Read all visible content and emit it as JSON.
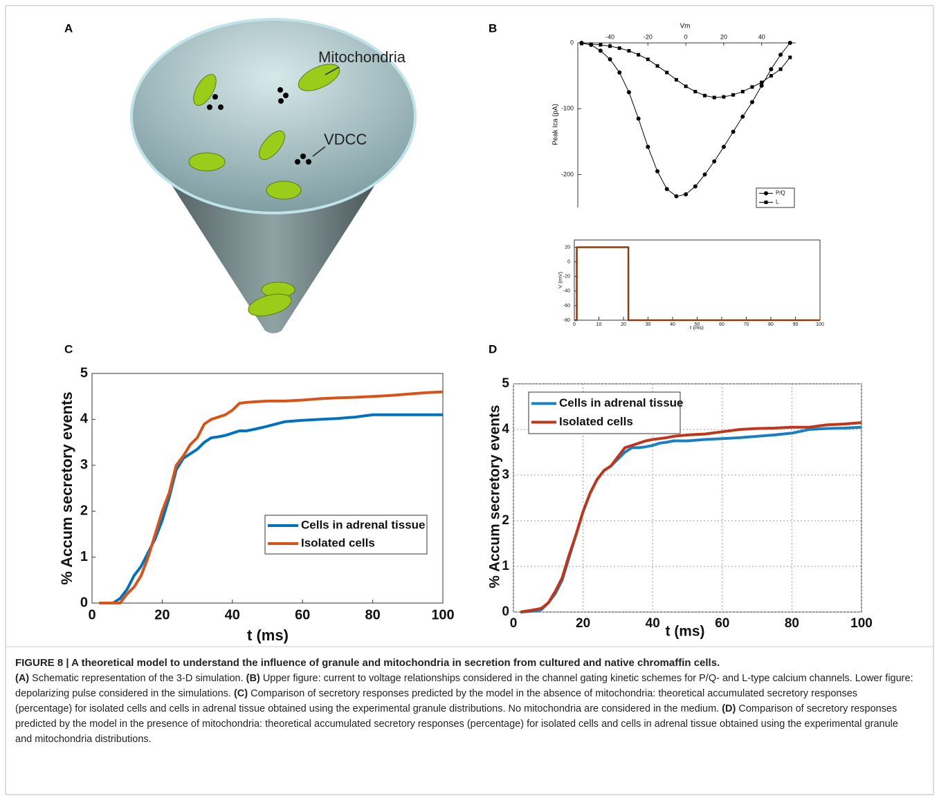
{
  "panels": [
    "A",
    "B",
    "C",
    "D"
  ],
  "diagram": {
    "labels": [
      "Mitochondria",
      "VDCC"
    ]
  },
  "chart_data": [
    {
      "type": "line",
      "xlabel": "Vm",
      "ylabel": "Peak Ica (pA)",
      "x": [
        -55,
        -50,
        -45,
        -40,
        -35,
        -30,
        -25,
        -20,
        -15,
        -10,
        -5,
        0,
        5,
        10,
        15,
        20,
        25,
        30,
        35,
        40,
        45,
        50,
        55
      ],
      "xlim": [
        -57,
        58
      ],
      "xticks": [
        -40,
        -20,
        0,
        20,
        40
      ],
      "ylim": [
        -250,
        0
      ],
      "yticks": [
        -200,
        -100,
        0
      ],
      "series": [
        {
          "name": "P/Q",
          "color": "#000000",
          "marker": "circle",
          "values": [
            0,
            -3,
            -12,
            -25,
            -45,
            -75,
            -115,
            -158,
            -195,
            -222,
            -233,
            -230,
            -218,
            -200,
            -180,
            -158,
            -135,
            -112,
            -90,
            -65,
            -40,
            -18,
            0
          ]
        },
        {
          "name": "L",
          "color": "#000000",
          "marker": "square",
          "values": [
            -1,
            -2,
            -3,
            -5,
            -8,
            -12,
            -18,
            -25,
            -35,
            -45,
            -56,
            -66,
            -74,
            -80,
            -83,
            -82,
            -79,
            -74,
            -67,
            -60,
            -50,
            -40,
            -22
          ]
        }
      ],
      "legend": "lower right"
    },
    {
      "type": "line",
      "xlabel": "t (ms)",
      "ylabel": "V (mV)",
      "x": [
        0,
        1,
        1,
        22,
        22,
        100
      ],
      "xlim": [
        0,
        100
      ],
      "xticks": [
        0,
        10,
        20,
        30,
        40,
        50,
        60,
        70,
        80,
        90,
        100
      ],
      "ylim": [
        -80,
        30
      ],
      "yticks": [
        -80,
        -60,
        -40,
        -20,
        0,
        20
      ],
      "series": [
        {
          "color": "#8b3a0f",
          "values": [
            -80,
            -80,
            20,
            20,
            -80,
            -80
          ]
        }
      ]
    },
    {
      "type": "line",
      "xlabel": "t (ms)",
      "ylabel": "% Accum secretory events",
      "x": [
        2,
        6,
        8,
        10,
        12,
        14,
        16,
        18,
        20,
        22,
        24,
        26,
        28,
        30,
        32,
        34,
        36,
        38,
        40,
        42,
        44,
        46,
        50,
        55,
        60,
        65,
        70,
        75,
        80,
        85,
        90,
        95,
        100
      ],
      "xlim": [
        0,
        100
      ],
      "xticks": [
        0,
        20,
        40,
        60,
        80,
        100
      ],
      "ylim": [
        0,
        5
      ],
      "yticks": [
        0,
        1,
        2,
        3,
        4,
        5
      ],
      "series": [
        {
          "name": "Cells in adrenal tissue",
          "color": "#0072bd",
          "values": [
            0,
            0,
            0.1,
            0.3,
            0.6,
            0.8,
            1.1,
            1.4,
            1.8,
            2.3,
            2.9,
            3.15,
            3.25,
            3.35,
            3.5,
            3.6,
            3.62,
            3.65,
            3.7,
            3.75,
            3.75,
            3.78,
            3.85,
            3.95,
            3.98,
            4.0,
            4.02,
            4.05,
            4.1,
            4.1,
            4.1,
            4.1,
            4.1
          ]
        },
        {
          "name": "Isolated cells",
          "color": "#d95319",
          "values": [
            0,
            0,
            0,
            0.2,
            0.35,
            0.6,
            1.0,
            1.5,
            2.0,
            2.4,
            3.0,
            3.2,
            3.45,
            3.6,
            3.9,
            4.0,
            4.05,
            4.1,
            4.2,
            4.35,
            4.37,
            4.38,
            4.4,
            4.4,
            4.42,
            4.45,
            4.47,
            4.48,
            4.5,
            4.52,
            4.55,
            4.58,
            4.6
          ]
        }
      ],
      "legend": "lower right"
    },
    {
      "type": "line",
      "xlabel": "t (ms)",
      "ylabel": "% Accum secretory events",
      "grid": true,
      "x": [
        2,
        6,
        8,
        10,
        12,
        14,
        16,
        18,
        20,
        22,
        24,
        26,
        28,
        30,
        32,
        34,
        36,
        38,
        40,
        42,
        44,
        46,
        50,
        55,
        60,
        65,
        70,
        75,
        80,
        85,
        90,
        95,
        100
      ],
      "xlim": [
        0,
        100
      ],
      "xticks": [
        0,
        20,
        40,
        60,
        80,
        100
      ],
      "ylim": [
        0,
        5
      ],
      "yticks": [
        0,
        1,
        2,
        3,
        4,
        5
      ],
      "series": [
        {
          "name": "Cells in adrenal tissue",
          "color": "#1a7fc1",
          "values": [
            0,
            0.02,
            0.05,
            0.2,
            0.4,
            0.7,
            1.2,
            1.7,
            2.2,
            2.6,
            2.9,
            3.1,
            3.2,
            3.35,
            3.5,
            3.6,
            3.6,
            3.62,
            3.65,
            3.7,
            3.72,
            3.75,
            3.75,
            3.78,
            3.8,
            3.82,
            3.85,
            3.88,
            3.92,
            4.0,
            4.02,
            4.03,
            4.05
          ]
        },
        {
          "name": "Isolated cells",
          "color": "#c0361b",
          "values": [
            0,
            0.05,
            0.08,
            0.2,
            0.45,
            0.75,
            1.25,
            1.7,
            2.2,
            2.6,
            2.9,
            3.1,
            3.2,
            3.4,
            3.6,
            3.65,
            3.7,
            3.75,
            3.78,
            3.8,
            3.82,
            3.85,
            3.88,
            3.9,
            3.95,
            4.0,
            4.02,
            4.03,
            4.05,
            4.05,
            4.1,
            4.12,
            4.15
          ]
        }
      ],
      "legend": "upper left"
    }
  ],
  "caption": {
    "title": "FIGURE 8 | A theoretical model to understand the influence of granule and mitochondria in secretion from cultured and native chromaffin cells.",
    "parts": [
      {
        "label": "(A)",
        "text": " Schematic representation of the 3-D simulation. "
      },
      {
        "label": "(B)",
        "text": " Upper figure: current to voltage relationships considered in the channel gating kinetic schemes for P/Q- and L-type calcium channels. Lower figure: depolarizing pulse considered in the simulations. "
      },
      {
        "label": "(C)",
        "text": " Comparison of secretory responses predicted by the model in the absence of mitochondria: theoretical accumulated secretory responses (percentage) for isolated cells and cells in adrenal tissue obtained using the experimental granule distributions. No mitochondria are considered in the medium. "
      },
      {
        "label": "(D)",
        "text": " Comparison of secretory responses predicted by the model in the presence of mitochondria: theoretical accumulated secretory responses (percentage) for isolated cells and cells in adrenal tissue obtained using the experimental granule and mitochondria distributions."
      }
    ]
  }
}
